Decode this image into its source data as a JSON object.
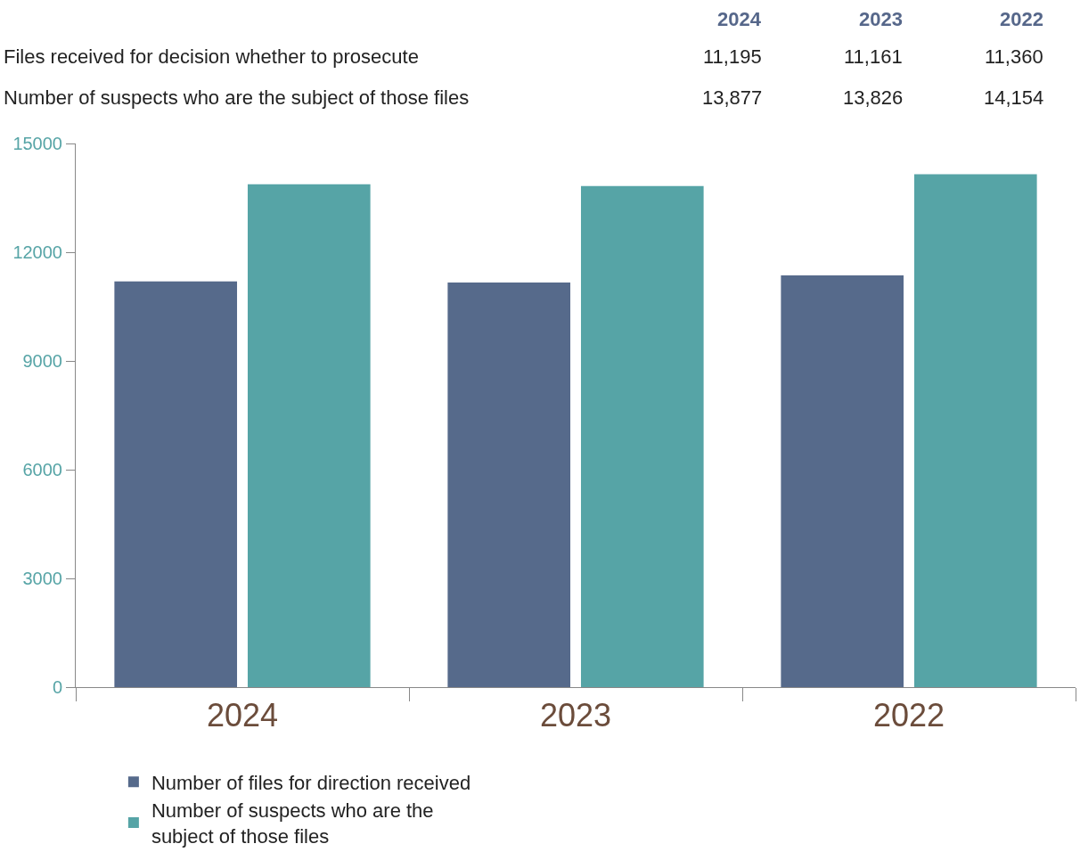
{
  "chart_data": {
    "type": "bar",
    "categories": [
      "2024",
      "2023",
      "2022"
    ],
    "series": [
      {
        "name": "Number of files for direction received",
        "color": "#566a8b",
        "values": [
          11195,
          11161,
          11360
        ]
      },
      {
        "name": "Number of suspects who are the\nsubject of those files",
        "color": "#56a4a6",
        "values": [
          13877,
          13826,
          14154
        ]
      }
    ],
    "annotations": [
      "Files received for decision whether to prosecute",
      "11,195",
      "11,161",
      "11,360",
      "Number of suspects who are the subject of those files",
      "13,877",
      "13,826",
      "14,154"
    ],
    "ylim": [
      0,
      15000
    ],
    "yticks": [
      0,
      3000,
      6000,
      9000,
      12000,
      15000
    ],
    "legend": "bottom"
  }
}
